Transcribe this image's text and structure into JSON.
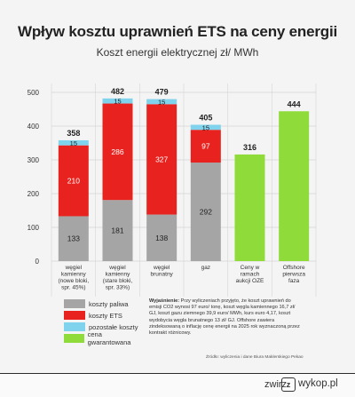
{
  "title": "Wpływ kosztu uprawnień ETS na ceny energii",
  "subtitle": "Koszt energii elektrycznej zł/ MWh",
  "colors": {
    "fuel": "#a5a5a5",
    "ets": "#e8231f",
    "other": "#7fd3ec",
    "guaranteed": "#8edb3a",
    "grid": "#d5d5d5"
  },
  "legend": [
    {
      "label": "koszty paliwa",
      "color_key": "fuel"
    },
    {
      "label": "koszty ETS",
      "color_key": "ets"
    },
    {
      "label": "pozostałe koszty",
      "color_key": "other"
    },
    {
      "label": "cena gwarantowana",
      "color_key": "guaranteed"
    }
  ],
  "note": {
    "heading": "Wyjaśnienie:",
    "text": "Przy wyliczeniach przyjęto, że koszt uprawnień do emisji CO2 wynosi 97 euro/ tonę, koszt węgla kamiennego 16,7 zł/ GJ, koszt gazu ziemnego 39,9 euro/ MWh, kurs euro 4,17, koszt wydobycia węgla brunatnego 13 zł/ GJ. Offshore zawiera zindeksowaną o inflację cenę energii na 2025 rok wyznaczoną przez kontrakt różnicowy."
  },
  "source": "Źródło: wyliczenia i dane Biura Maklerskiego Pekao",
  "footer": {
    "user": "zwirz",
    "logo_letter": "z",
    "site": "wykop.pl"
  },
  "chart_data": {
    "type": "bar",
    "stacked": true,
    "categories": [
      [
        "węgiel",
        "kamienny",
        "(nowe bloki,",
        "spr. 45%)"
      ],
      [
        "węgiel",
        "kamienny",
        "(stare bloki,",
        "spr. 33%)"
      ],
      [
        "węgiel",
        "brunatny"
      ],
      [
        "gaz"
      ],
      [
        "Ceny w",
        "ramach",
        "aukcji OZE"
      ],
      [
        "Offshore",
        "pierwsza",
        "faza"
      ]
    ],
    "series": [
      {
        "name": "koszty paliwa",
        "color_key": "fuel",
        "values": [
          133,
          181,
          138,
          292,
          null,
          null
        ]
      },
      {
        "name": "koszty ETS",
        "color_key": "ets",
        "values": [
          210,
          286,
          327,
          97,
          null,
          null
        ]
      },
      {
        "name": "pozostałe koszty",
        "color_key": "other",
        "values": [
          15,
          15,
          15,
          15,
          null,
          null
        ]
      },
      {
        "name": "cena gwarantowana",
        "color_key": "guaranteed",
        "values": [
          null,
          null,
          null,
          null,
          316,
          444
        ]
      }
    ],
    "totals": [
      358,
      482,
      479,
      405,
      316,
      444
    ],
    "yticks": [
      0,
      100,
      200,
      300,
      400,
      500
    ],
    "ylim": [
      0,
      500
    ],
    "grid": true
  }
}
